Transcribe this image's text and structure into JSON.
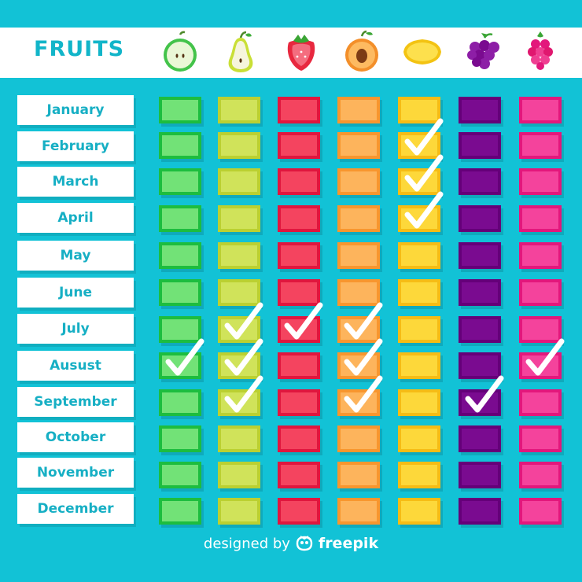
{
  "header": {
    "title": "FRUITS"
  },
  "fruits": [
    {
      "icon": "apple-icon",
      "fill": "#72e277",
      "border": "#1dbd3f"
    },
    {
      "icon": "pear-icon",
      "fill": "#d0e35a",
      "border": "#bbd031"
    },
    {
      "icon": "strawberry-icon",
      "fill": "#f4445f",
      "border": "#e0163e"
    },
    {
      "icon": "apricot-icon",
      "fill": "#fdb45c",
      "border": "#f8962e"
    },
    {
      "icon": "lemon-icon",
      "fill": "#fdd83a",
      "border": "#f6bc15"
    },
    {
      "icon": "grapes-icon",
      "fill": "#7a0b90",
      "border": "#650079"
    },
    {
      "icon": "raspberry-icon",
      "fill": "#f4439c",
      "border": "#e3177c"
    }
  ],
  "months": [
    "January",
    "February",
    "March",
    "April",
    "May",
    "June",
    "July",
    "Ausust",
    "September",
    "October",
    "November",
    "December"
  ],
  "season": [
    [
      0,
      0,
      0,
      0,
      0,
      0,
      0
    ],
    [
      0,
      0,
      0,
      0,
      1,
      0,
      0
    ],
    [
      0,
      0,
      0,
      0,
      1,
      0,
      0
    ],
    [
      0,
      0,
      0,
      0,
      1,
      0,
      0
    ],
    [
      0,
      0,
      0,
      0,
      0,
      0,
      0
    ],
    [
      0,
      0,
      0,
      0,
      0,
      0,
      0
    ],
    [
      0,
      1,
      1,
      1,
      0,
      0,
      0
    ],
    [
      1,
      1,
      0,
      1,
      0,
      0,
      1
    ],
    [
      0,
      1,
      0,
      1,
      0,
      1,
      0
    ],
    [
      0,
      0,
      0,
      0,
      0,
      0,
      0
    ],
    [
      0,
      0,
      0,
      0,
      0,
      0,
      0
    ],
    [
      0,
      0,
      0,
      0,
      0,
      0,
      0
    ]
  ],
  "footer": {
    "prefix": "designed by",
    "brand": "freepik"
  }
}
